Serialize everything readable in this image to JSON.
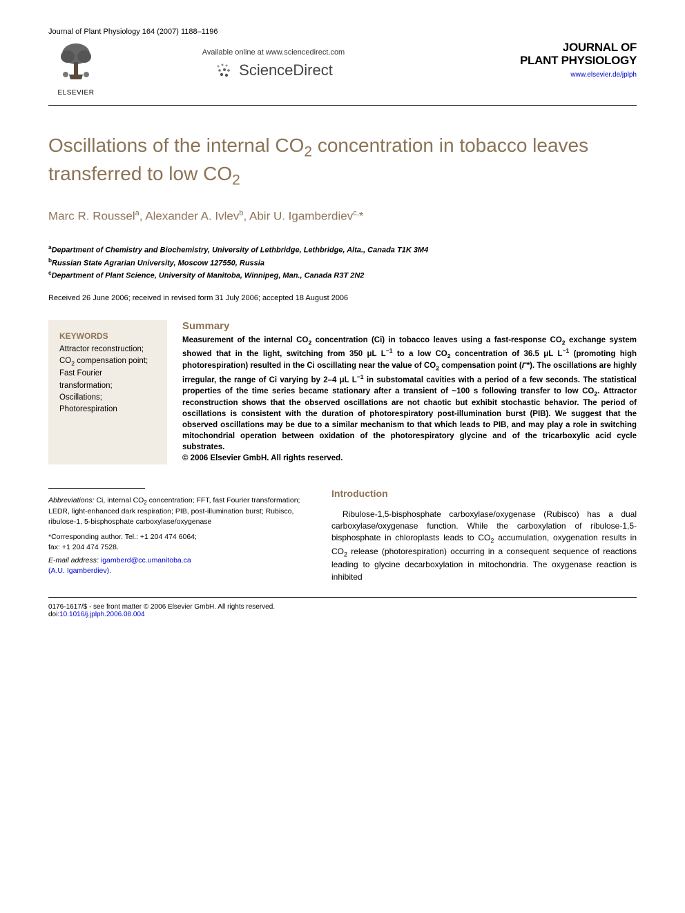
{
  "citation": "Journal of Plant Physiology 164 (2007) 1188–1196",
  "publisher": {
    "label": "ELSEVIER"
  },
  "sciencedirect": {
    "available": "Available online at www.sciencedirect.com",
    "brand": "ScienceDirect"
  },
  "journal": {
    "title_line1": "JOURNAL OF",
    "title_line2": "PLANT PHYSIOLOGY",
    "url": "www.elsevier.de/jplph"
  },
  "title_html": "Oscillations of the internal CO<sub>2</sub> concentration in tobacco leaves transferred to low CO<sub>2</sub>",
  "authors_html": "Marc R. Roussel<sup>a</sup>, Alexander A. Ivlev<sup>b</sup>, Abir U. Igamberdiev<sup>c,</sup>*",
  "affiliations": {
    "a": "Department of Chemistry and Biochemistry, University of Lethbridge, Lethbridge, Alta., Canada T1K 3M4",
    "b": "Russian State Agrarian University, Moscow 127550, Russia",
    "c": "Department of Plant Science, University of Manitoba, Winnipeg, Man., Canada R3T 2N2"
  },
  "dates": "Received 26 June 2006; received in revised form 31 July 2006; accepted 18 August 2006",
  "keywords": {
    "heading": "KEYWORDS",
    "items_html": "Attractor reconstruction;<br>CO<sub>2</sub> compensation point;<br>Fast Fourier transformation;<br>Oscillations;<br>Photorespiration"
  },
  "summary": {
    "heading": "Summary",
    "body_html": "Measurement of the internal CO<sub>2</sub> concentration (Ci) in tobacco leaves using a fast-response CO<sub>2</sub> exchange system showed that in the light, switching from 350 μL L<sup>−1</sup> to a low CO<sub>2</sub> concentration of 36.5 μL L<sup>−1</sup> (promoting high photorespiration) resulted in the Ci oscillating near the value of CO<sub>2</sub> compensation point (<i>Γ</i>*). The oscillations are highly irregular, the range of Ci varying by 2–4 μL L<sup>−1</sup> in substomatal cavities with a period of a few seconds. The statistical properties of the time series became stationary after a transient of ~100 s following transfer to low CO<sub>2</sub>. Attractor reconstruction shows that the observed oscillations are not chaotic but exhibit stochastic behavior. The period of oscillations is consistent with the duration of photorespiratory post-illumination burst (PIB). We suggest that the observed oscillations may be due to a similar mechanism to that which leads to PIB, and may play a role in switching mitochondrial operation between oxidation of the photorespiratory glycine and of the tricarboxylic acid cycle substrates.<br>© 2006 Elsevier GmbH. All rights reserved."
  },
  "footnotes": {
    "abbreviations_label": "Abbreviations:",
    "abbreviations_html": " Ci, internal CO<sub>2</sub> concentration; FFT, fast Fourier transformation; LEDR, light-enhanced dark respiration; PIB, post-illumination burst; Rubisco, ribulose-1, 5-bisphosphate carboxylase/oxygenase",
    "corresponding": "*Corresponding author. Tel.: +1 204 474 6064;",
    "fax": "fax: +1 204 474 7528.",
    "email_label": "E-mail address:",
    "email": "igamberd@cc.umanitoba.ca",
    "email_attribution": "(A.U. Igamberdiev)."
  },
  "intro": {
    "heading": "Introduction",
    "body_html": "Ribulose-1,5-bisphosphate carboxylase/oxygenase (Rubisco) has a dual carboxylase/oxygenase function. While the carboxylation of ribulose-1,5-bisphosphate in chloroplasts leads to CO<sub>2</sub> accumulation, oxygenation results in CO<sub>2</sub> release (photorespiration) occurring in a consequent sequence of reactions leading to glycine decarboxylation in mitochondria. The oxygenase reaction is inhibited"
  },
  "bottom": {
    "front_matter": "0176-1617/$ - see front matter © 2006 Elsevier GmbH. All rights reserved.",
    "doi_label": "doi:",
    "doi": "10.1016/j.jplph.2006.08.004"
  },
  "colors": {
    "brown": "#8b7355",
    "keywords_bg": "#f2ede4",
    "link": "#0000cc"
  }
}
